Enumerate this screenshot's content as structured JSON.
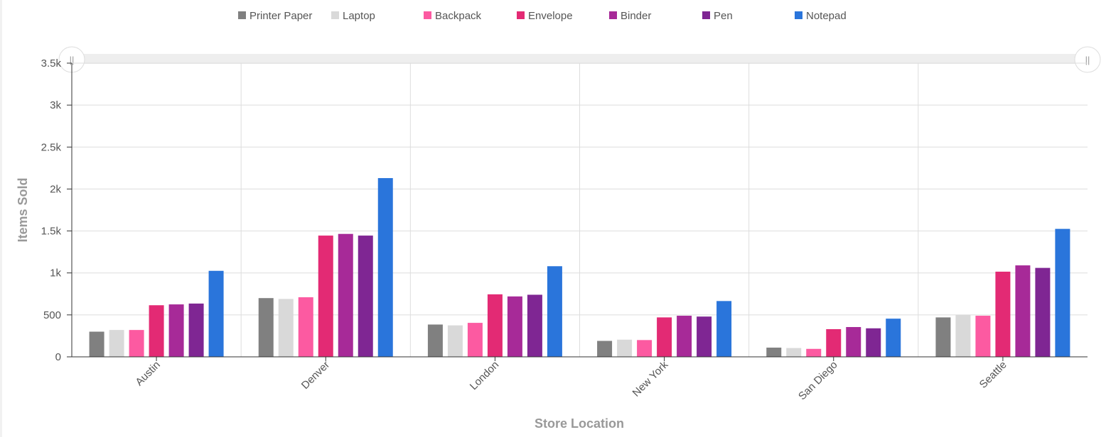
{
  "chart_data": {
    "type": "bar",
    "categories": [
      "Austin",
      "Denver",
      "London",
      "New York",
      "San Diego",
      "Seattle"
    ],
    "series": [
      {
        "name": "Printer Paper",
        "color": "#808080",
        "values": [
          300,
          700,
          385,
          190,
          110,
          470
        ]
      },
      {
        "name": "Laptop",
        "color": "#d9d9d9",
        "values": [
          320,
          690,
          375,
          205,
          105,
          500
        ]
      },
      {
        "name": "Backpack",
        "color": "#fc5aa1",
        "values": [
          320,
          710,
          405,
          200,
          95,
          490
        ]
      },
      {
        "name": "Envelope",
        "color": "#e32a74",
        "values": [
          615,
          1445,
          745,
          470,
          330,
          1015
        ]
      },
      {
        "name": "Binder",
        "color": "#a72a98",
        "values": [
          625,
          1465,
          720,
          490,
          355,
          1090
        ]
      },
      {
        "name": "Pen",
        "color": "#7f2693",
        "values": [
          635,
          1445,
          740,
          480,
          340,
          1060
        ]
      },
      {
        "name": "Notepad",
        "color": "#2a75db",
        "values": [
          1025,
          2130,
          1080,
          665,
          455,
          1525
        ]
      }
    ],
    "yticks": [
      {
        "value": 0,
        "label": "0"
      },
      {
        "value": 500,
        "label": "500"
      },
      {
        "value": 1000,
        "label": "1k"
      },
      {
        "value": 1500,
        "label": "1.5k"
      },
      {
        "value": 2000,
        "label": "2k"
      },
      {
        "value": 2500,
        "label": "2.5k"
      },
      {
        "value": 3000,
        "label": "3k"
      },
      {
        "value": 3500,
        "label": "3.5k"
      }
    ],
    "ylim": [
      0,
      3500
    ],
    "xlabel": "Store Location",
    "ylabel": "Items Sold",
    "grid": true,
    "legend_position": "top",
    "scrollbar": {
      "grip_left": "||",
      "grip_right": "||"
    }
  }
}
